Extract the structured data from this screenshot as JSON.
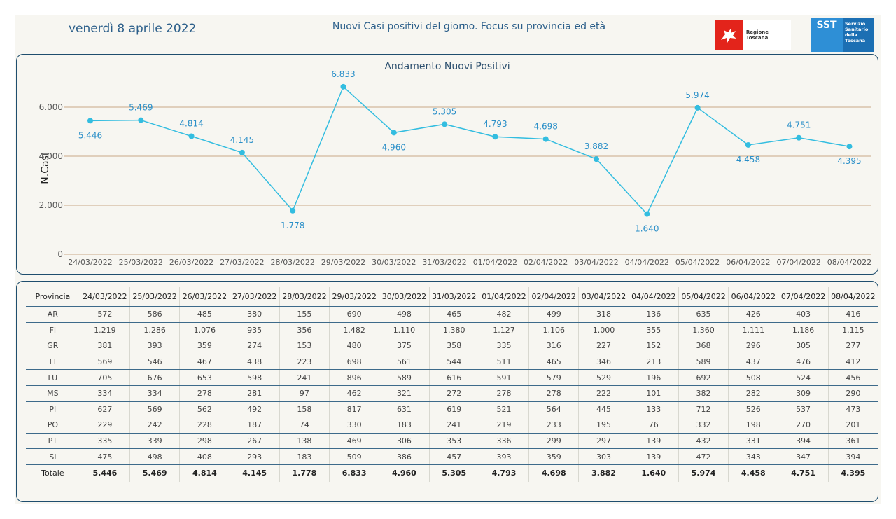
{
  "header": {
    "date": "venerdì 8 aprile 2022",
    "title": "Nuovi Casi positivi del giorno. Focus su provincia ed età",
    "logo_regione": "Regione Toscana",
    "logo_sst_mark": "SST",
    "logo_sst_words": [
      "Servizio",
      "Sanitario",
      "della",
      "Toscana"
    ]
  },
  "colors": {
    "line": "#33bde0",
    "label": "#2a8fc8",
    "grid": "#c8a887",
    "border": "#1f4e6e"
  },
  "chart_data": {
    "type": "line",
    "title": "Andamento Nuovi Positivi",
    "xlabel": "",
    "ylabel": "N.Casi",
    "ylim": [
      0,
      7000
    ],
    "yticks": [
      0,
      2000,
      4000,
      6000
    ],
    "ytick_labels": [
      "0",
      "2.000",
      "4.000",
      "6.000"
    ],
    "grid": true,
    "categories": [
      "24/03/2022",
      "25/03/2022",
      "26/03/2022",
      "27/03/2022",
      "28/03/2022",
      "29/03/2022",
      "30/03/2022",
      "31/03/2022",
      "01/04/2022",
      "02/04/2022",
      "03/04/2022",
      "04/04/2022",
      "05/04/2022",
      "06/04/2022",
      "07/04/2022",
      "08/04/2022"
    ],
    "values": [
      5446,
      5469,
      4814,
      4145,
      1778,
      6833,
      4960,
      5305,
      4793,
      4698,
      3882,
      1640,
      5974,
      4458,
      4751,
      4395
    ],
    "value_labels": [
      "5.446",
      "5.469",
      "4.814",
      "4.145",
      "1.778",
      "6.833",
      "4.960",
      "5.305",
      "4.793",
      "4.698",
      "3.882",
      "1.640",
      "5.974",
      "4.458",
      "4.751",
      "4.395"
    ],
    "label_side": [
      "below",
      "above",
      "above",
      "above",
      "below",
      "above",
      "below",
      "above",
      "above",
      "above",
      "above",
      "below",
      "above",
      "below",
      "above",
      "below"
    ]
  },
  "table": {
    "header_first": "Provincia",
    "dates": [
      "24/03/2022",
      "25/03/2022",
      "26/03/2022",
      "27/03/2022",
      "28/03/2022",
      "29/03/2022",
      "30/03/2022",
      "31/03/2022",
      "01/04/2022",
      "02/04/2022",
      "03/04/2022",
      "04/04/2022",
      "05/04/2022",
      "06/04/2022",
      "07/04/2022",
      "08/04/2022"
    ],
    "rows": [
      {
        "name": "AR",
        "values": [
          "572",
          "586",
          "485",
          "380",
          "155",
          "690",
          "498",
          "465",
          "482",
          "499",
          "318",
          "136",
          "635",
          "426",
          "403",
          "416"
        ]
      },
      {
        "name": "FI",
        "values": [
          "1.219",
          "1.286",
          "1.076",
          "935",
          "356",
          "1.482",
          "1.110",
          "1.380",
          "1.127",
          "1.106",
          "1.000",
          "355",
          "1.360",
          "1.111",
          "1.186",
          "1.115"
        ]
      },
      {
        "name": "GR",
        "values": [
          "381",
          "393",
          "359",
          "274",
          "153",
          "480",
          "375",
          "358",
          "335",
          "316",
          "227",
          "152",
          "368",
          "296",
          "305",
          "277"
        ]
      },
      {
        "name": "LI",
        "values": [
          "569",
          "546",
          "467",
          "438",
          "223",
          "698",
          "561",
          "544",
          "511",
          "465",
          "346",
          "213",
          "589",
          "437",
          "476",
          "412"
        ]
      },
      {
        "name": "LU",
        "values": [
          "705",
          "676",
          "653",
          "598",
          "241",
          "896",
          "589",
          "616",
          "591",
          "579",
          "529",
          "196",
          "692",
          "508",
          "524",
          "456"
        ]
      },
      {
        "name": "MS",
        "values": [
          "334",
          "334",
          "278",
          "281",
          "97",
          "462",
          "321",
          "272",
          "278",
          "278",
          "222",
          "101",
          "382",
          "282",
          "309",
          "290"
        ]
      },
      {
        "name": "PI",
        "values": [
          "627",
          "569",
          "562",
          "492",
          "158",
          "817",
          "631",
          "619",
          "521",
          "564",
          "445",
          "133",
          "712",
          "526",
          "537",
          "473"
        ]
      },
      {
        "name": "PO",
        "values": [
          "229",
          "242",
          "228",
          "187",
          "74",
          "330",
          "183",
          "241",
          "219",
          "233",
          "195",
          "76",
          "332",
          "198",
          "270",
          "201"
        ]
      },
      {
        "name": "PT",
        "values": [
          "335",
          "339",
          "298",
          "267",
          "138",
          "469",
          "306",
          "353",
          "336",
          "299",
          "297",
          "139",
          "432",
          "331",
          "394",
          "361"
        ]
      },
      {
        "name": "SI",
        "values": [
          "475",
          "498",
          "408",
          "293",
          "183",
          "509",
          "386",
          "457",
          "393",
          "359",
          "303",
          "139",
          "472",
          "343",
          "347",
          "394"
        ]
      }
    ],
    "total": {
      "name": "Totale",
      "values": [
        "5.446",
        "5.469",
        "4.814",
        "4.145",
        "1.778",
        "6.833",
        "4.960",
        "5.305",
        "4.793",
        "4.698",
        "3.882",
        "1.640",
        "5.974",
        "4.458",
        "4.751",
        "4.395"
      ]
    }
  }
}
